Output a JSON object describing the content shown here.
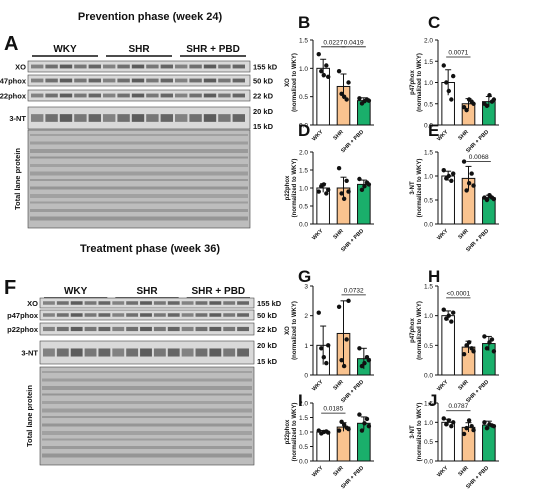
{
  "sections": {
    "prevention": "Prevention phase (week 24)",
    "treatment": "Treatment phase (week 36)"
  },
  "blots": [
    {
      "letter": "A",
      "groups": [
        "WKY",
        "SHR",
        "SHR + PBD"
      ],
      "rows": [
        {
          "name": "XO",
          "size": "155 kD"
        },
        {
          "name": "p47phox",
          "size": "50 kD"
        },
        {
          "name": "p22phox",
          "size": "22 kD"
        },
        {
          "name": "3-NT",
          "size": "20 kD",
          "size2": "15 kD"
        }
      ],
      "total_label": "Total lane protein"
    },
    {
      "letter": "F",
      "groups": [
        "WKY",
        "SHR",
        "SHR + PBD"
      ],
      "rows": [
        {
          "name": "XO",
          "size": "155 kD"
        },
        {
          "name": "p47phox",
          "size": "50 kD"
        },
        {
          "name": "p22phox",
          "size": "22 kD"
        },
        {
          "name": "3-NT",
          "size": "20 kD",
          "size2": "15 kD"
        }
      ],
      "total_label": "Total lane protein"
    }
  ],
  "colors": {
    "WKY": "#ffffff",
    "SHR": "#f9c38f",
    "SHR + PBD": "#1aaf6b",
    "point": "#111111",
    "blot_bg": "#d9d9d9",
    "band": "#3a3a3a"
  },
  "chart_data": [
    {
      "panel": "B",
      "type": "bar",
      "categories": [
        "WKY",
        "SHR",
        "SHR + PBD"
      ],
      "ylabel": "XO\n(normalized to WKY)",
      "ylim": [
        0,
        1.5
      ],
      "yticks": [
        0.0,
        0.5,
        1.0,
        1.5
      ],
      "values": [
        1.0,
        0.68,
        0.43
      ],
      "errors": [
        0.16,
        0.22,
        0.05
      ],
      "points": [
        [
          1.25,
          0.95,
          0.88,
          1.05,
          0.85
        ],
        [
          0.95,
          0.55,
          0.5,
          0.45,
          0.75
        ],
        [
          0.47,
          0.38,
          0.42,
          0.45,
          0.43
        ]
      ],
      "annotations": [
        {
          "from": 0,
          "to": 1,
          "text": "0.0227",
          "y": 1.38
        },
        {
          "from": 1,
          "to": 2,
          "text": "0.0419",
          "y": 1.38
        }
      ]
    },
    {
      "panel": "C",
      "type": "bar",
      "categories": [
        "WKY",
        "SHR",
        "SHR + PBD"
      ],
      "ylabel": "p47phox\n(normalized to WKY)",
      "ylim": [
        0,
        2.0
      ],
      "yticks": [
        0.0,
        0.5,
        1.0,
        1.5,
        2.0
      ],
      "values": [
        1.0,
        0.5,
        0.55
      ],
      "errors": [
        0.3,
        0.12,
        0.12
      ],
      "points": [
        [
          1.4,
          1.0,
          0.8,
          0.6,
          1.15
        ],
        [
          0.42,
          0.35,
          0.6,
          0.55,
          0.5
        ],
        [
          0.5,
          0.45,
          0.7,
          0.55,
          0.6
        ]
      ],
      "annotations": [
        {
          "from": 0,
          "to": 1,
          "text": "0.0071",
          "y": 1.6
        }
      ]
    },
    {
      "panel": "D",
      "type": "bar",
      "categories": [
        "WKY",
        "SHR",
        "SHR + PBD"
      ],
      "ylabel": "p22phox\n(normalized to WKY)",
      "ylim": [
        0,
        2.0
      ],
      "yticks": [
        0.0,
        0.5,
        1.0,
        1.5,
        2.0
      ],
      "values": [
        1.0,
        1.0,
        1.1
      ],
      "errors": [
        0.12,
        0.3,
        0.12
      ],
      "points": [
        [
          0.9,
          1.05,
          1.1,
          0.85,
          0.95
        ],
        [
          1.55,
          0.85,
          0.7,
          1.2,
          0.9
        ],
        [
          1.25,
          0.95,
          1.05,
          1.15,
          1.1
        ]
      ],
      "annotations": []
    },
    {
      "panel": "E",
      "type": "bar",
      "categories": [
        "WKY",
        "SHR",
        "SHR + PBD"
      ],
      "ylabel": "3-NT\n(normalized to WKY)",
      "ylim": [
        0,
        1.5
      ],
      "yticks": [
        0.0,
        0.5,
        1.0,
        1.5
      ],
      "values": [
        1.0,
        0.95,
        0.55
      ],
      "errors": [
        0.1,
        0.25,
        0.05
      ],
      "points": [
        [
          1.12,
          0.95,
          1.0,
          0.9,
          1.05
        ],
        [
          1.3,
          0.7,
          0.85,
          1.05,
          0.8
        ],
        [
          0.55,
          0.5,
          0.6,
          0.55,
          0.52
        ]
      ],
      "annotations": [
        {
          "from": 1,
          "to": 2,
          "text": "0.0068",
          "y": 1.3
        }
      ]
    },
    {
      "panel": "G",
      "type": "bar",
      "categories": [
        "WKY",
        "SHR",
        "SHR + PBD"
      ],
      "ylabel": "XO\n(normalized to WKY)",
      "ylim": [
        0,
        3
      ],
      "yticks": [
        0,
        1,
        2,
        3
      ],
      "values": [
        1.0,
        1.4,
        0.55
      ],
      "errors": [
        0.65,
        1.1,
        0.35
      ],
      "points": [
        [
          2.1,
          0.9,
          0.6,
          0.4,
          1.0
        ],
        [
          2.3,
          0.5,
          0.3,
          1.2,
          2.5
        ],
        [
          0.9,
          0.3,
          0.4,
          0.6,
          0.5
        ]
      ],
      "annotations": [
        {
          "from": 1,
          "to": 2,
          "text": "0.0732",
          "y": 2.7
        }
      ]
    },
    {
      "panel": "H",
      "type": "bar",
      "categories": [
        "WKY",
        "SHR",
        "SHR + PBD"
      ],
      "ylabel": "p47phox\n(normalized to WKY)",
      "ylim": [
        0,
        1.5
      ],
      "yticks": [
        0.0,
        0.5,
        1.0,
        1.5
      ],
      "values": [
        1.0,
        0.47,
        0.53
      ],
      "errors": [
        0.08,
        0.1,
        0.12
      ],
      "points": [
        [
          1.1,
          0.95,
          1.0,
          0.9,
          1.05
        ],
        [
          0.35,
          0.5,
          0.55,
          0.45,
          0.4
        ],
        [
          0.65,
          0.45,
          0.55,
          0.6,
          0.4
        ]
      ],
      "annotations": [
        {
          "from": 0,
          "to": 1,
          "text": "<0.0001",
          "y": 1.3
        }
      ]
    },
    {
      "panel": "I",
      "type": "bar",
      "categories": [
        "WKY",
        "SHR",
        "SHR + PBD"
      ],
      "ylabel": "p22phox\n(normalized to WKY)",
      "ylim": [
        0,
        2.0
      ],
      "yticks": [
        0.0,
        0.5,
        1.0,
        1.5,
        2.0
      ],
      "values": [
        1.0,
        1.17,
        1.3
      ],
      "errors": [
        0.05,
        0.15,
        0.22
      ],
      "points": [
        [
          1.05,
          0.95,
          1.0,
          1.02,
          0.98
        ],
        [
          1.05,
          1.35,
          1.25,
          1.15,
          1.1
        ],
        [
          1.6,
          1.05,
          1.3,
          1.45,
          1.2
        ]
      ],
      "annotations": [
        {
          "from": 0,
          "to": 1,
          "text": "0.0185",
          "y": 1.65
        }
      ]
    },
    {
      "panel": "J",
      "type": "bar",
      "categories": [
        "WKY",
        "SHR",
        "SHR + PBD"
      ],
      "ylabel": "3-NT\n(normalized to WKY)",
      "ylim": [
        0,
        1.5
      ],
      "yticks": [
        0.0,
        0.5,
        1.0,
        1.5
      ],
      "values": [
        1.0,
        0.87,
        0.93
      ],
      "errors": [
        0.08,
        0.12,
        0.1
      ],
      "points": [
        [
          1.1,
          0.95,
          1.05,
          0.9,
          1.0
        ],
        [
          0.7,
          0.85,
          1.05,
          0.9,
          0.8
        ],
        [
          1.0,
          0.85,
          0.95,
          0.92,
          0.9
        ]
      ],
      "annotations": [
        {
          "from": 0,
          "to": 1,
          "text": "0.0787",
          "y": 1.3
        }
      ]
    }
  ]
}
